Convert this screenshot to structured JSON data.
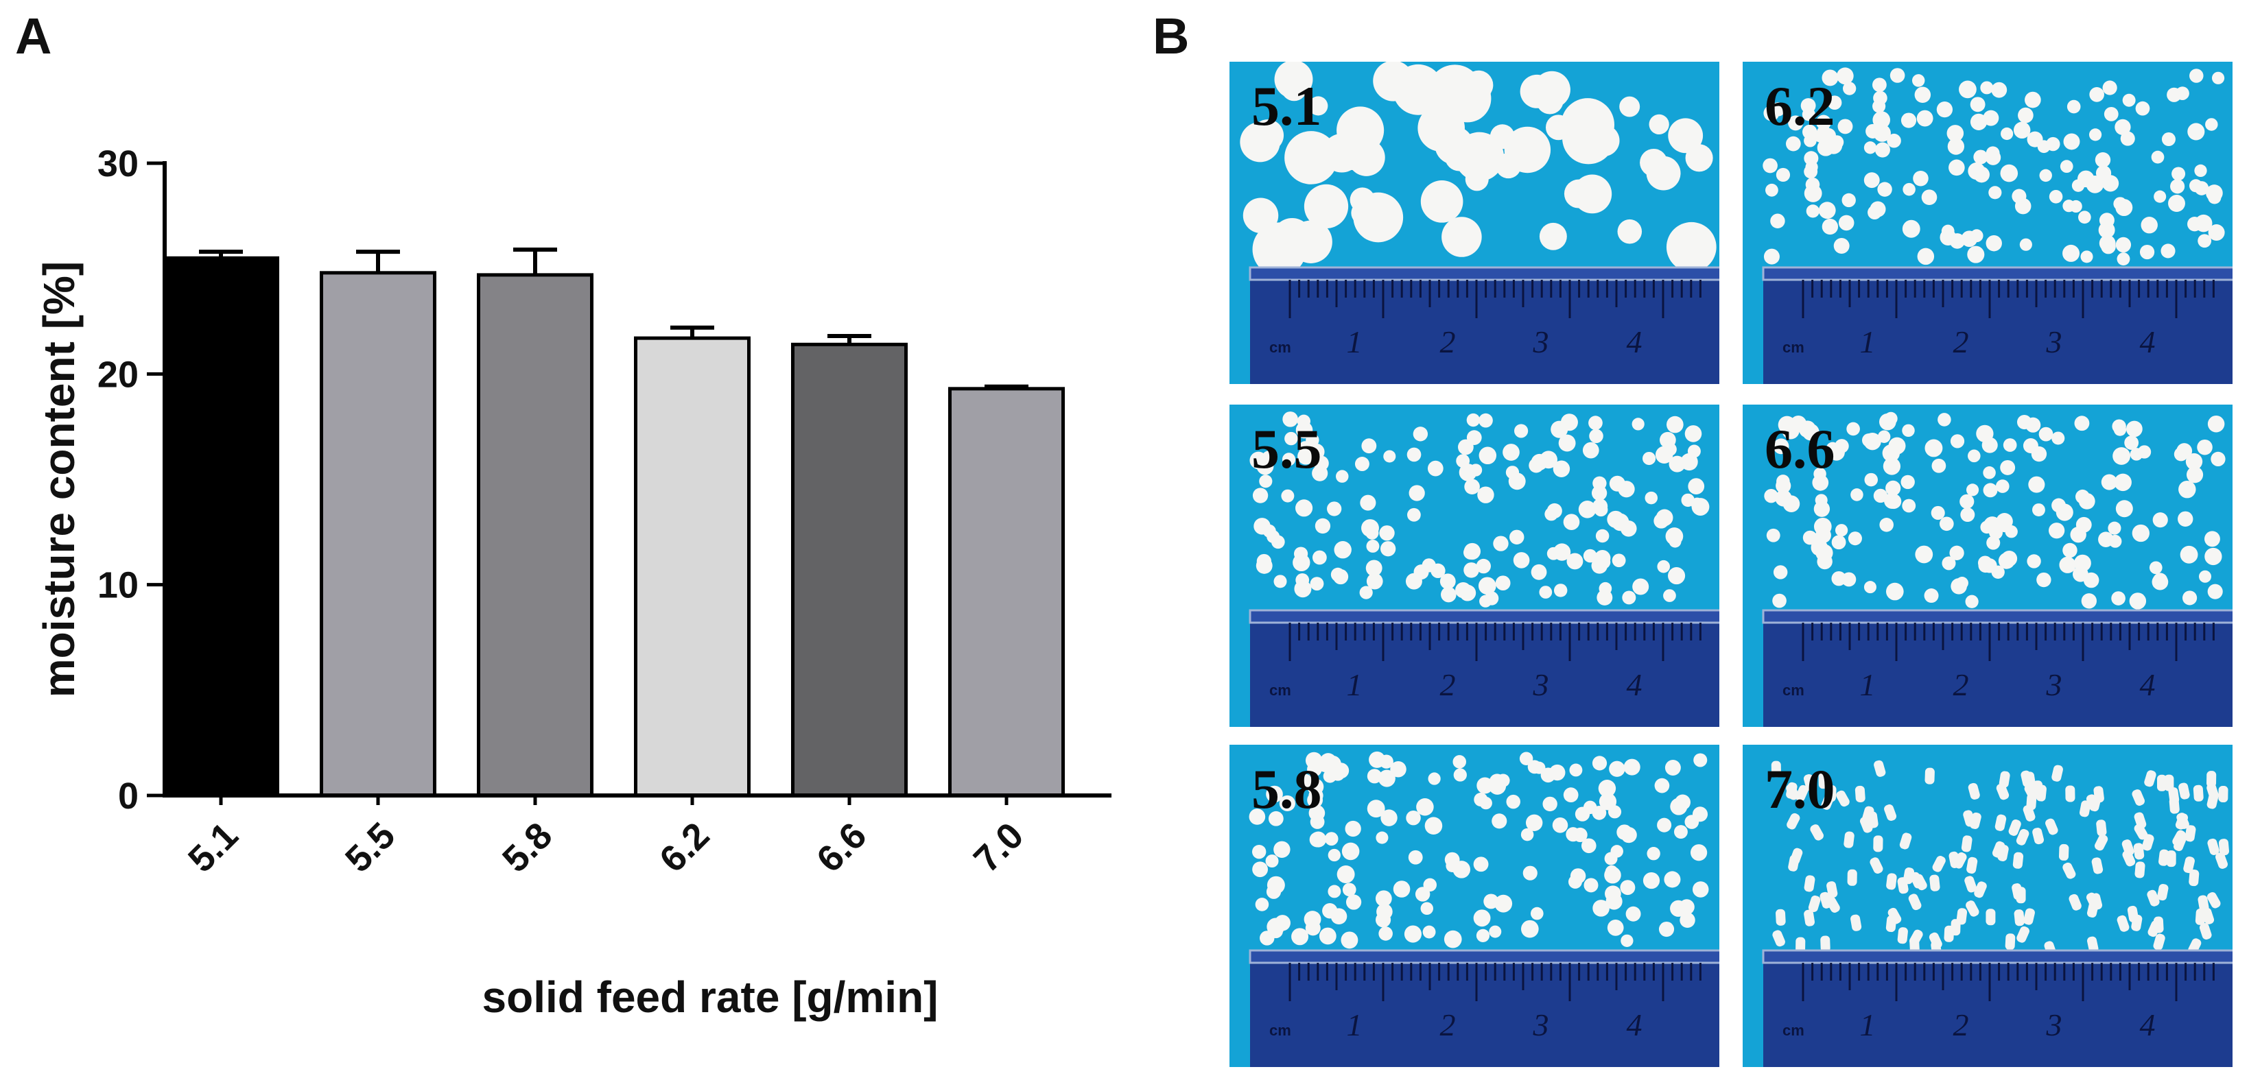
{
  "panels": {
    "a_label": "A",
    "b_label": "B"
  },
  "chart_data": {
    "type": "bar",
    "xlabel": "solid feed rate [g/min]",
    "ylabel": "moisture content [%]",
    "categories": [
      "5.1",
      "5.5",
      "5.8",
      "6.2",
      "6.6",
      "7.0"
    ],
    "values": [
      25.5,
      24.8,
      24.7,
      21.7,
      21.4,
      19.3
    ],
    "errors": [
      0.3,
      1.0,
      1.2,
      0.5,
      0.4,
      0.1
    ],
    "bar_colors": [
      "#000000",
      "#a09fa6",
      "#848387",
      "#d8d8d8",
      "#636365",
      "#a09fa6"
    ],
    "ylim": [
      0,
      30
    ],
    "yticks": [
      0,
      10,
      20,
      30
    ]
  },
  "photos": {
    "labels": [
      "5.1",
      "6.2",
      "5.5",
      "6.6",
      "5.8",
      "7.0"
    ],
    "ruler_unit": "cm",
    "ruler_numbers": [
      "1",
      "2",
      "3",
      "4"
    ],
    "background_color": "#14a3d6"
  }
}
